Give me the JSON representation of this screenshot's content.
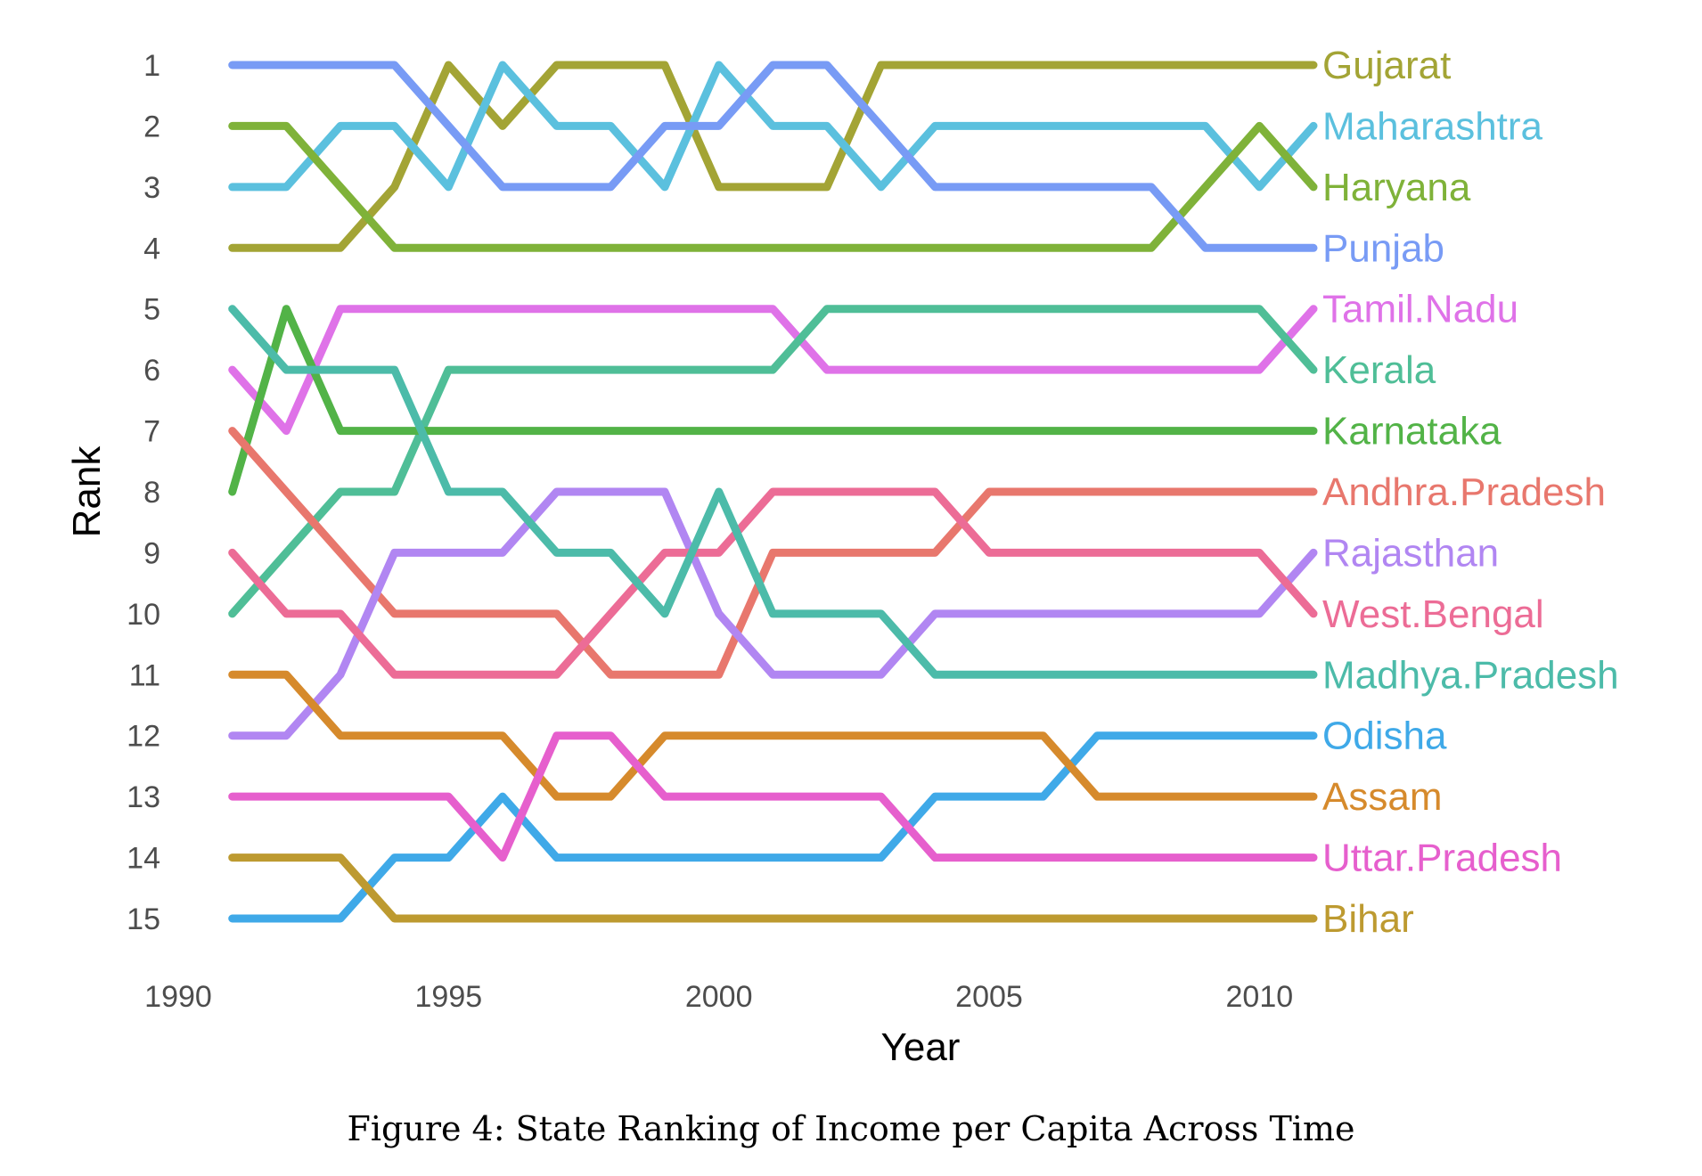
{
  "caption": "Figure 4: State Ranking of Income per Capita Across Time",
  "chart_data": {
    "type": "line",
    "title": "",
    "xlabel": "Year",
    "ylabel": "Rank",
    "xlim": [
      1990,
      2020
    ],
    "ylim": [
      1,
      15
    ],
    "y_reversed": true,
    "x_ticks": [
      1990,
      1995,
      2000,
      2005,
      2010
    ],
    "y_ticks": [
      1,
      2,
      3,
      4,
      5,
      6,
      7,
      8,
      9,
      10,
      11,
      12,
      13,
      14,
      15
    ],
    "grid": false,
    "legend": "direct labels at line ends (right)",
    "x": [
      1991,
      1992,
      1993,
      1994,
      1995,
      1996,
      1997,
      1998,
      1999,
      2000,
      2001,
      2002,
      2003,
      2004,
      2005,
      2006,
      2007,
      2008,
      2009,
      2010,
      2011
    ],
    "series": [
      {
        "name": "Gujarat",
        "color": "#a3a435",
        "values": [
          4,
          4,
          4,
          3,
          1,
          2,
          1,
          1,
          1,
          3,
          3,
          3,
          1,
          1,
          1,
          1,
          1,
          1,
          1,
          1,
          1
        ]
      },
      {
        "name": "Maharashtra",
        "color": "#5bc0de",
        "values": [
          3,
          3,
          2,
          2,
          3,
          1,
          2,
          2,
          3,
          1,
          2,
          2,
          3,
          2,
          2,
          2,
          2,
          2,
          2,
          3,
          2
        ]
      },
      {
        "name": "Haryana",
        "color": "#7fb239",
        "values": [
          2,
          2,
          3,
          4,
          4,
          4,
          4,
          4,
          4,
          4,
          4,
          4,
          4,
          4,
          4,
          4,
          4,
          4,
          3,
          2,
          3
        ]
      },
      {
        "name": "Punjab",
        "color": "#789bf5",
        "values": [
          1,
          1,
          1,
          1,
          2,
          3,
          3,
          3,
          2,
          2,
          1,
          1,
          2,
          3,
          3,
          3,
          3,
          3,
          4,
          4,
          4
        ]
      },
      {
        "name": "Tamil.Nadu",
        "color": "#df72e8",
        "values": [
          6,
          7,
          5,
          5,
          5,
          5,
          5,
          5,
          5,
          5,
          5,
          6,
          6,
          6,
          6,
          6,
          6,
          6,
          6,
          6,
          5
        ]
      },
      {
        "name": "Kerala",
        "color": "#4fbe97",
        "values": [
          10,
          9,
          8,
          8,
          6,
          6,
          6,
          6,
          6,
          6,
          6,
          5,
          5,
          5,
          5,
          5,
          5,
          5,
          5,
          5,
          6
        ]
      },
      {
        "name": "Karnataka",
        "color": "#52b347",
        "values": [
          8,
          5,
          7,
          7,
          7,
          7,
          7,
          7,
          7,
          7,
          7,
          7,
          7,
          7,
          7,
          7,
          7,
          7,
          7,
          7,
          7
        ]
      },
      {
        "name": "Andhra.Pradesh",
        "color": "#e8776d",
        "values": [
          7,
          8,
          9,
          10,
          10,
          10,
          10,
          11,
          11,
          11,
          9,
          9,
          9,
          9,
          8,
          8,
          8,
          8,
          8,
          8,
          8
        ]
      },
      {
        "name": "Rajasthan",
        "color": "#b186f2",
        "values": [
          12,
          12,
          11,
          9,
          9,
          9,
          8,
          8,
          8,
          10,
          11,
          11,
          11,
          10,
          10,
          10,
          10,
          10,
          10,
          10,
          9
        ]
      },
      {
        "name": "West.Bengal",
        "color": "#ec6c96",
        "values": [
          9,
          10,
          10,
          11,
          11,
          11,
          11,
          10,
          9,
          9,
          8,
          8,
          8,
          8,
          9,
          9,
          9,
          9,
          9,
          9,
          10
        ]
      },
      {
        "name": "Madhya.Pradesh",
        "color": "#4cbba9",
        "values": [
          5,
          6,
          6,
          6,
          8,
          8,
          9,
          9,
          10,
          8,
          10,
          10,
          10,
          11,
          11,
          11,
          11,
          11,
          11,
          11,
          11
        ]
      },
      {
        "name": "Odisha",
        "color": "#3fa9e8",
        "values": [
          15,
          15,
          15,
          14,
          14,
          13,
          14,
          14,
          14,
          14,
          14,
          14,
          14,
          13,
          13,
          13,
          12,
          12,
          12,
          12,
          12
        ]
      },
      {
        "name": "Assam",
        "color": "#d68a2c",
        "values": [
          11,
          11,
          12,
          12,
          12,
          12,
          13,
          13,
          12,
          12,
          12,
          12,
          12,
          12,
          12,
          12,
          13,
          13,
          13,
          13,
          13
        ]
      },
      {
        "name": "Uttar.Pradesh",
        "color": "#e65fcd",
        "values": [
          13,
          13,
          13,
          13,
          13,
          14,
          12,
          12,
          13,
          13,
          13,
          13,
          13,
          14,
          14,
          14,
          14,
          14,
          14,
          14,
          14
        ]
      },
      {
        "name": "Bihar",
        "color": "#bd9a30",
        "values": [
          14,
          14,
          14,
          15,
          15,
          15,
          15,
          15,
          15,
          15,
          15,
          15,
          15,
          15,
          15,
          15,
          15,
          15,
          15,
          15,
          15
        ]
      }
    ]
  }
}
